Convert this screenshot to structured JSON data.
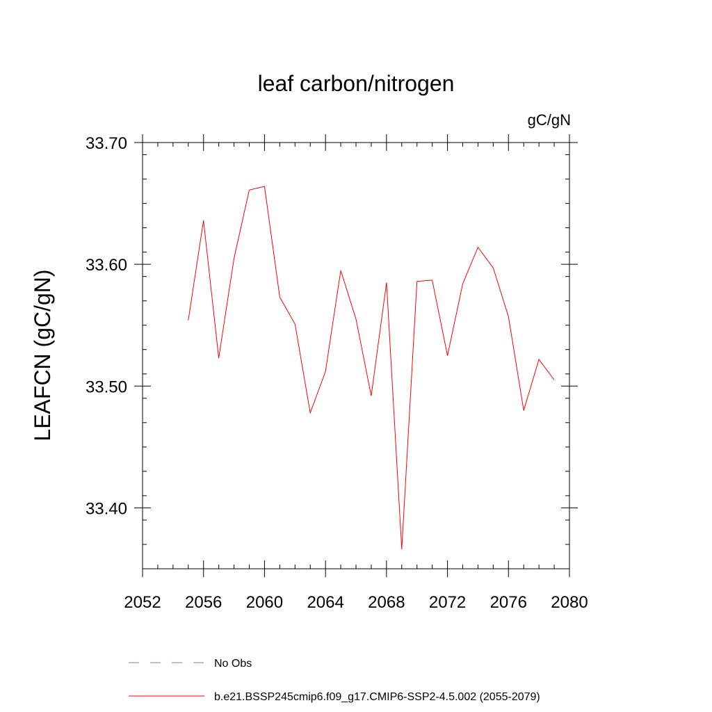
{
  "chart_data": {
    "type": "line",
    "title": "leaf carbon/nitrogen",
    "units_label": "gC/gN",
    "ylabel": "LEAFCN  (gC/gN)",
    "xlabel": "",
    "xlim": [
      2052,
      2080
    ],
    "ylim": [
      33.35,
      33.7
    ],
    "x_ticks": [
      2052,
      2056,
      2060,
      2064,
      2068,
      2072,
      2076,
      2080
    ],
    "x_tick_labels": [
      "2052",
      "2056",
      "2060",
      "2064",
      "2068",
      "2072",
      "2076",
      "2080"
    ],
    "y_ticks": [
      33.4,
      33.5,
      33.6,
      33.7
    ],
    "y_tick_labels": [
      "33.40",
      "33.50",
      "33.60",
      "33.70"
    ],
    "y_minor_step": 0.02,
    "x_minor_step": 1,
    "grid": false,
    "series": [
      {
        "name": "b.e21.BSSP245cmip6.f09_g17.CMIP6-SSP2-4.5.002 (2055-2079)",
        "color": "#ff0000",
        "style": "solid",
        "x": [
          2055,
          2056,
          2057,
          2058,
          2059,
          2060,
          2061,
          2062,
          2063,
          2064,
          2065,
          2066,
          2067,
          2068,
          2069,
          2070,
          2071,
          2072,
          2073,
          2074,
          2075,
          2076,
          2077,
          2078,
          2079
        ],
        "values": [
          33.554,
          33.636,
          33.523,
          33.605,
          33.661,
          33.664,
          33.573,
          33.551,
          33.478,
          33.512,
          33.595,
          33.555,
          33.492,
          33.585,
          33.366,
          33.586,
          33.587,
          33.525,
          33.584,
          33.614,
          33.597,
          33.557,
          33.48,
          33.522,
          33.505
        ]
      }
    ],
    "legend": [
      {
        "label": "No Obs",
        "color": "#7777cc",
        "style": "dashed"
      },
      {
        "label": "b.e21.BSSP245cmip6.f09_g17.CMIP6-SSP2-4.5.002 (2055-2079)",
        "color": "#ff0000",
        "style": "solid"
      }
    ],
    "legend_position": "bottom-left"
  }
}
